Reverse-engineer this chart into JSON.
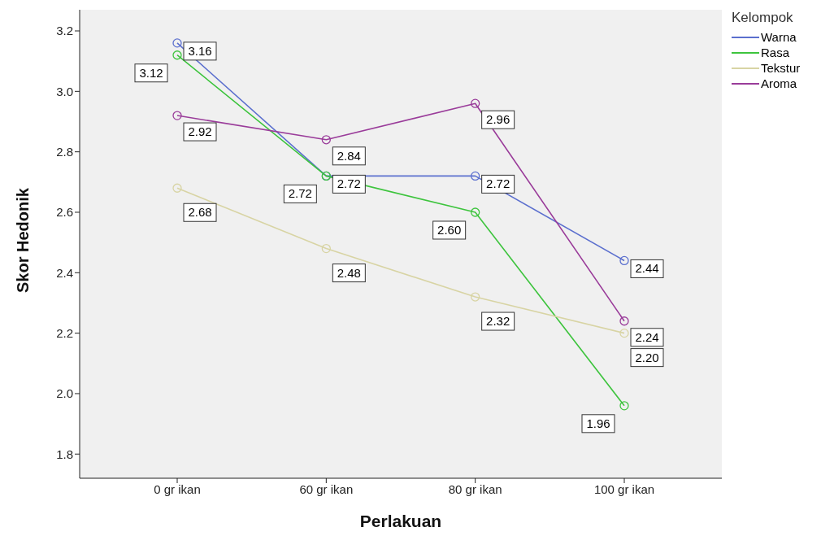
{
  "chart_data": {
    "type": "line",
    "xlabel": "Perlakuan",
    "ylabel": "Skor Hedonik",
    "legend_title": "Kelompok",
    "categories": [
      "0 gr ikan",
      "60 gr ikan",
      "80 gr ikan",
      "100 gr ikan"
    ],
    "series": [
      {
        "name": "Warna",
        "color": "#5b6fce",
        "values": [
          3.16,
          2.72,
          2.72,
          2.44
        ],
        "value_labels": [
          "3.16",
          "2.72",
          "2.72",
          "2.44"
        ]
      },
      {
        "name": "Rasa",
        "color": "#3ec43e",
        "values": [
          3.12,
          2.72,
          2.6,
          1.96
        ],
        "value_labels": [
          "3.12",
          "2.72",
          "2.60",
          "1.96"
        ]
      },
      {
        "name": "Tekstur",
        "color": "#d8d4a4",
        "values": [
          2.68,
          2.48,
          2.32,
          2.2
        ],
        "value_labels": [
          "2.68",
          "2.48",
          "2.32",
          "2.20"
        ]
      },
      {
        "name": "Aroma",
        "color": "#9a3c9a",
        "values": [
          2.92,
          2.84,
          2.96,
          2.24
        ],
        "value_labels": [
          "2.92",
          "2.84",
          "2.96",
          "2.24"
        ]
      }
    ],
    "ylim": [
      1.72,
      3.27
    ],
    "yticks": [
      {
        "value": 1.8,
        "label": "1.8"
      },
      {
        "value": 2.0,
        "label": "2.0"
      },
      {
        "value": 2.2,
        "label": "2.2"
      },
      {
        "value": 2.4,
        "label": "2.4"
      },
      {
        "value": 2.6,
        "label": "2.6"
      },
      {
        "value": 2.8,
        "label": "2.8"
      },
      {
        "value": 3.0,
        "label": "3.0"
      },
      {
        "value": 3.2,
        "label": "3.2"
      }
    ],
    "grid": false,
    "legend": "top right",
    "marker": "circle",
    "line_style": "solid"
  }
}
